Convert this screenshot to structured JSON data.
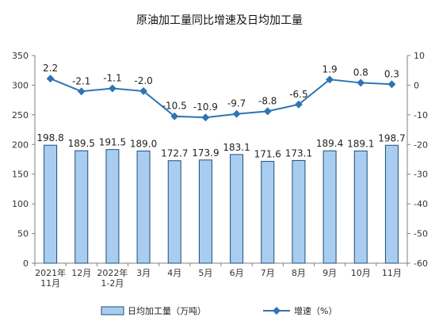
{
  "chart_data": {
    "type": "bar",
    "title": "原油加工量同比增速及日均加工量",
    "categories": [
      [
        "2021年",
        "11月"
      ],
      [
        "12月"
      ],
      [
        "2022年",
        "1-2月"
      ],
      [
        "3月"
      ],
      [
        "4月"
      ],
      [
        "5月"
      ],
      [
        "6月"
      ],
      [
        "7月"
      ],
      [
        "8月"
      ],
      [
        "9月"
      ],
      [
        "10月"
      ],
      [
        "11月"
      ]
    ],
    "series": [
      {
        "name": "日均加工量（万吨）",
        "type": "bar",
        "axis": "left",
        "values": [
          198.8,
          189.5,
          191.5,
          189.0,
          172.7,
          173.9,
          183.1,
          171.6,
          173.1,
          189.4,
          189.1,
          198.7
        ],
        "labels": [
          "198.8",
          "189.5",
          "191.5",
          "189.0",
          "172.7",
          "173.9",
          "183.1",
          "171.6",
          "173.1",
          "189.4",
          "189.1",
          "198.7"
        ]
      },
      {
        "name": "增速（%）",
        "type": "line",
        "axis": "right",
        "values": [
          2.2,
          -2.1,
          -1.1,
          -2.0,
          -10.5,
          -10.9,
          -9.7,
          -8.8,
          -6.5,
          1.9,
          0.8,
          0.3
        ],
        "labels": [
          "2.2",
          "-2.1",
          "-1.1",
          "-2.0",
          "-10.5",
          "-10.9",
          "-9.7",
          "-8.8",
          "-6.5",
          "1.9",
          "0.8",
          "0.3"
        ]
      }
    ],
    "y_left": {
      "min": 0,
      "max": 350,
      "ticks": [
        0,
        50,
        100,
        150,
        200,
        250,
        300,
        350
      ]
    },
    "y_right": {
      "min": -60,
      "max": 10,
      "ticks": [
        -60,
        -50,
        -40,
        -30,
        -20,
        -10,
        0,
        10
      ]
    },
    "grid": false,
    "legend": "bottom",
    "colors": {
      "bar_fill": "#a9cdf0",
      "bar_stroke": "#1f4e79",
      "line": "#2e74b5",
      "axis": "#808080"
    }
  }
}
